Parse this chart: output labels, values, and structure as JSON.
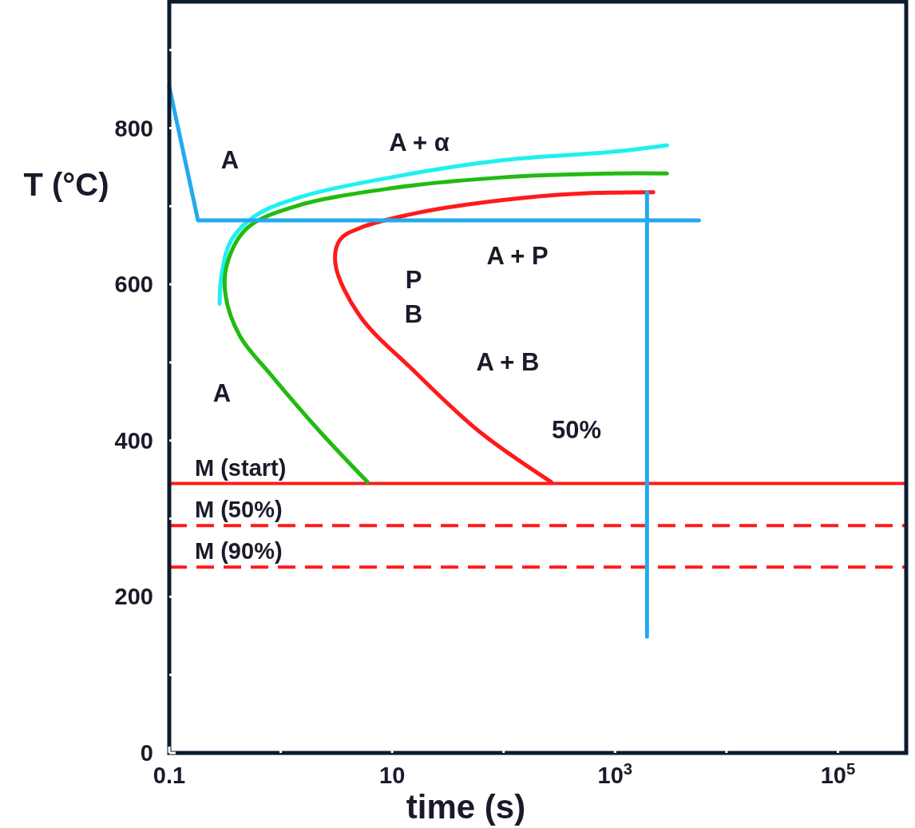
{
  "chart_data": {
    "type": "line",
    "xlabel": "time (s)",
    "ylabel": "T (°C)",
    "log": "x",
    "grid": false,
    "marker": "none",
    "line_style": "solid",
    "xlim": [
      0.1,
      410000
    ],
    "ylim": [
      0,
      960
    ],
    "xticks": [
      0.1,
      {
        "value": 1,
        "label": null
      },
      10,
      {
        "value": 100,
        "label": null
      },
      {
        "value": 1000,
        "label": "10$^{3}$"
      },
      {
        "value": 10000,
        "label": null
      },
      {
        "value": 100000,
        "label": "10$^{5}$"
      }
    ],
    "yticks": [
      0,
      {
        "value": 100,
        "label": null
      },
      200,
      {
        "value": 300,
        "label": null
      },
      400,
      {
        "value": 500,
        "label": null
      },
      600,
      {
        "value": 700,
        "label": null
      },
      800,
      {
        "value": 900,
        "label": null
      }
    ],
    "series": [
      {
        "color": "#1ff0f0",
        "x": [
          0.283,
          0.297,
          0.362,
          0.594,
          1.6,
          9.8,
          99,
          1000,
          2925
        ],
        "values": [
          575,
          616,
          657,
          688,
          713,
          737,
          759,
          770,
          778
        ]
      },
      {
        "color": "#22bb11",
        "x": [
          6.0,
          2.23,
          0.83,
          0.43,
          0.32,
          0.33,
          0.5,
          1.36,
          9.8,
          99,
          1000,
          2925
        ],
        "values": [
          347,
          412,
          483,
          534,
          586,
          626,
          672,
          700,
          723,
          737,
          742,
          742
        ]
      },
      {
        "color": "#ff1a1a",
        "x": [
          267,
          60,
          16,
          5.1,
          3.1,
          3.4,
          5.1,
          19,
          99,
          438,
          2208
        ],
        "values": [
          347,
          412,
          488,
          560,
          626,
          657,
          672,
          693,
          708,
          716,
          718
        ]
      },
      {
        "color": "#22aaee",
        "x": [
          0.1,
          0.181,
          5660
        ],
        "values": [
          853,
          682,
          682
        ]
      },
      {
        "color": "#22aaee",
        "x": [
          1936,
          1936
        ],
        "values": [
          718,
          149
        ]
      }
    ],
    "ref_lines": [
      {
        "axis": "y",
        "value": 345,
        "label": "M (start)",
        "color": "#ff1a1a",
        "line_style": "solid"
      },
      {
        "axis": "y",
        "value": 291,
        "label": "M (50%)",
        "color": "#ff1a1a",
        "line_style": "dashed"
      },
      {
        "axis": "y",
        "value": 238,
        "label": "M (90%)",
        "color": "#ff1a1a",
        "line_style": "dashed"
      }
    ],
    "annotations": [
      "A",
      "A + α",
      "A + P",
      "P",
      "B",
      "A + B",
      "A",
      "50%"
    ]
  }
}
